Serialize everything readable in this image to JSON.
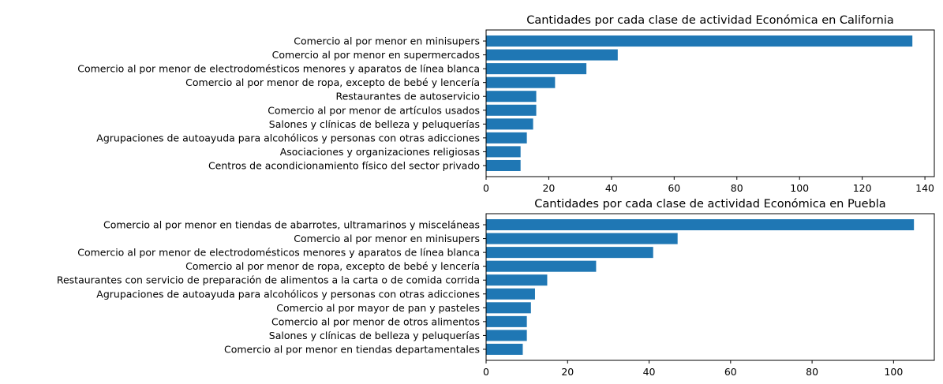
{
  "colors": {
    "bar": "#1f77b4",
    "axis": "#000000",
    "background": "#ffffff"
  },
  "chart_data": [
    {
      "type": "bar",
      "orientation": "horizontal",
      "title": "Cantidades por cada clase de actividad Económica en California",
      "xlabel": "",
      "ylabel": "",
      "xlim": [
        0,
        143
      ],
      "xticks": [
        0,
        20,
        40,
        60,
        80,
        100,
        120,
        140
      ],
      "grid": false,
      "categories": [
        "Comercio al por menor en minisupers",
        "Comercio al por menor en supermercados",
        "Comercio al por menor de electrodomésticos menores y aparatos de línea blanca",
        "Comercio al por menor de ropa, excepto de bebé y lencería",
        "Restaurantes de autoservicio",
        "Comercio al por menor de artículos usados",
        "Salones y clínicas de belleza y peluquerías",
        "Agrupaciones de autoayuda para alcohólicos y personas con otras adicciones",
        "Asociaciones y organizaciones religiosas",
        "Centros de acondicionamiento físico del sector privado"
      ],
      "values": [
        136,
        42,
        32,
        22,
        16,
        16,
        15,
        13,
        11,
        11
      ]
    },
    {
      "type": "bar",
      "orientation": "horizontal",
      "title": "Cantidades por cada clase de actividad Económica en Puebla",
      "xlabel": "",
      "ylabel": "",
      "xlim": [
        0,
        110
      ],
      "xticks": [
        0,
        20,
        40,
        60,
        80,
        100
      ],
      "grid": false,
      "categories": [
        "Comercio al por menor en tiendas de abarrotes, ultramarinos y misceláneas",
        "Comercio al por menor en minisupers",
        "Comercio al por menor de electrodomésticos menores y aparatos de línea blanca",
        "Comercio al por menor de ropa, excepto de bebé y lencería",
        "Restaurantes con servicio de preparación de alimentos a la carta o de comida corrida",
        "Agrupaciones de autoayuda para alcohólicos y personas con otras adicciones",
        "Comercio al por mayor de pan y pasteles",
        "Comercio al por menor de otros alimentos",
        "Salones y clínicas de belleza y peluquerías",
        "Comercio al por menor en tiendas departamentales"
      ],
      "values": [
        105,
        47,
        41,
        27,
        15,
        12,
        11,
        10,
        10,
        9
      ]
    }
  ]
}
